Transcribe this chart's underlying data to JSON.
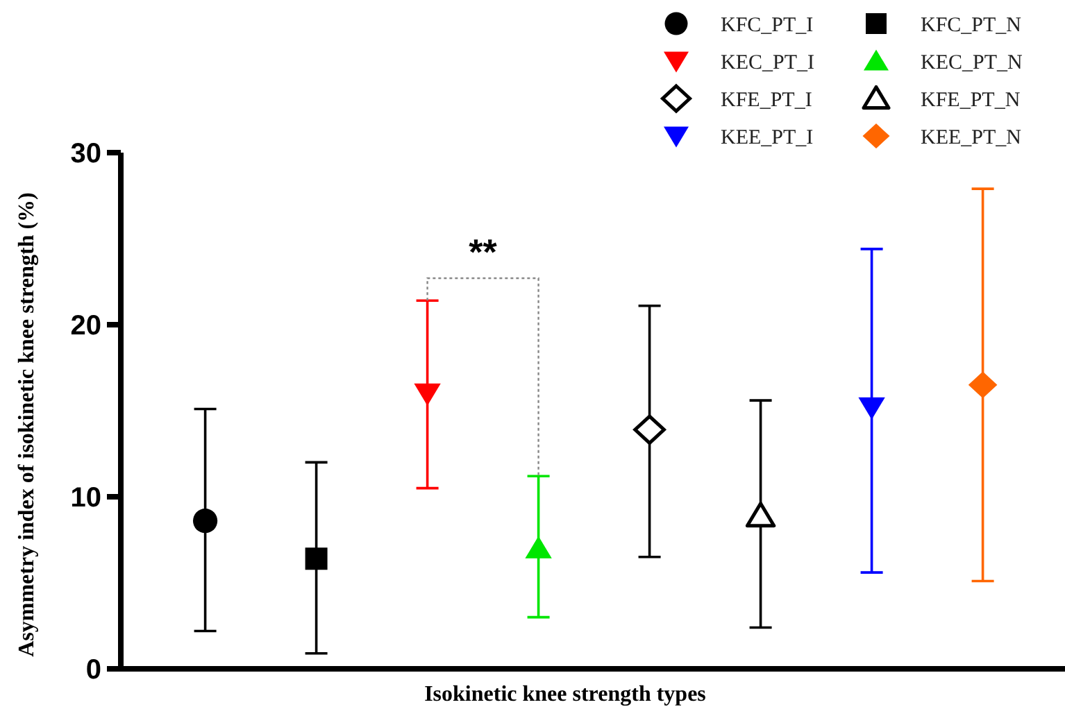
{
  "chart_data": {
    "type": "scatter",
    "xlabel": "Isokinetic knee strength types",
    "ylabel": "Asymmetry index of isokinetic knee strength (%)",
    "categories": [
      null,
      null,
      null,
      null,
      null,
      null,
      null,
      null
    ],
    "ylim": [
      0,
      30
    ],
    "yticks": [
      0,
      10,
      20,
      30
    ],
    "grid": false,
    "legend": "top right",
    "annotations": [
      "**"
    ],
    "series": [
      {
        "name": "KFC_PT_I",
        "color": "#000000",
        "marker": "circle",
        "values": [
          8.6,
          null,
          null,
          null,
          null,
          null,
          null,
          null
        ],
        "errors": [
          [
            2.2,
            15.1
          ],
          null,
          null,
          null,
          null,
          null,
          null,
          null
        ]
      },
      {
        "name": "KFC_PT_N",
        "color": "#000000",
        "marker": "square",
        "values": [
          null,
          6.4,
          null,
          null,
          null,
          null,
          null,
          null
        ],
        "errors": [
          null,
          [
            0.9,
            12.0
          ],
          null,
          null,
          null,
          null,
          null,
          null
        ]
      },
      {
        "name": "KEC_PT_I",
        "color": "#ff0000",
        "marker": "triangle-down",
        "values": [
          null,
          null,
          16.0,
          null,
          null,
          null,
          null,
          null
        ],
        "errors": [
          null,
          null,
          [
            10.5,
            21.4
          ],
          null,
          null,
          null,
          null,
          null
        ]
      },
      {
        "name": "KEC_PT_N",
        "color": "#00e600",
        "marker": "triangle",
        "values": [
          null,
          null,
          null,
          7.0,
          null,
          null,
          null,
          null
        ],
        "errors": [
          null,
          null,
          null,
          [
            3.0,
            11.2
          ],
          null,
          null,
          null,
          null
        ]
      },
      {
        "name": "KFE_PT_I",
        "color": "#000000",
        "marker": "diamond-open",
        "values": [
          null,
          null,
          null,
          null,
          13.9,
          null,
          null,
          null
        ],
        "errors": [
          null,
          null,
          null,
          null,
          [
            6.5,
            21.1
          ],
          null,
          null,
          null
        ]
      },
      {
        "name": "KFE_PT_N",
        "color": "#000000",
        "marker": "triangle-open",
        "values": [
          null,
          null,
          null,
          null,
          null,
          8.9,
          null,
          null
        ],
        "errors": [
          null,
          null,
          null,
          null,
          null,
          [
            2.4,
            15.6
          ],
          null,
          null
        ]
      },
      {
        "name": "KEE_PT_I",
        "color": "#0000ff",
        "marker": "triangle-down",
        "values": [
          null,
          null,
          null,
          null,
          null,
          null,
          15.2,
          null
        ],
        "errors": [
          null,
          null,
          null,
          null,
          null,
          null,
          [
            5.6,
            24.4
          ],
          null
        ]
      },
      {
        "name": "KEE_PT_N",
        "color": "#ff6600",
        "marker": "diamond",
        "values": [
          null,
          null,
          null,
          null,
          null,
          null,
          null,
          16.5
        ],
        "errors": [
          null,
          null,
          null,
          null,
          null,
          null,
          null,
          [
            5.1,
            27.9
          ]
        ]
      }
    ]
  }
}
